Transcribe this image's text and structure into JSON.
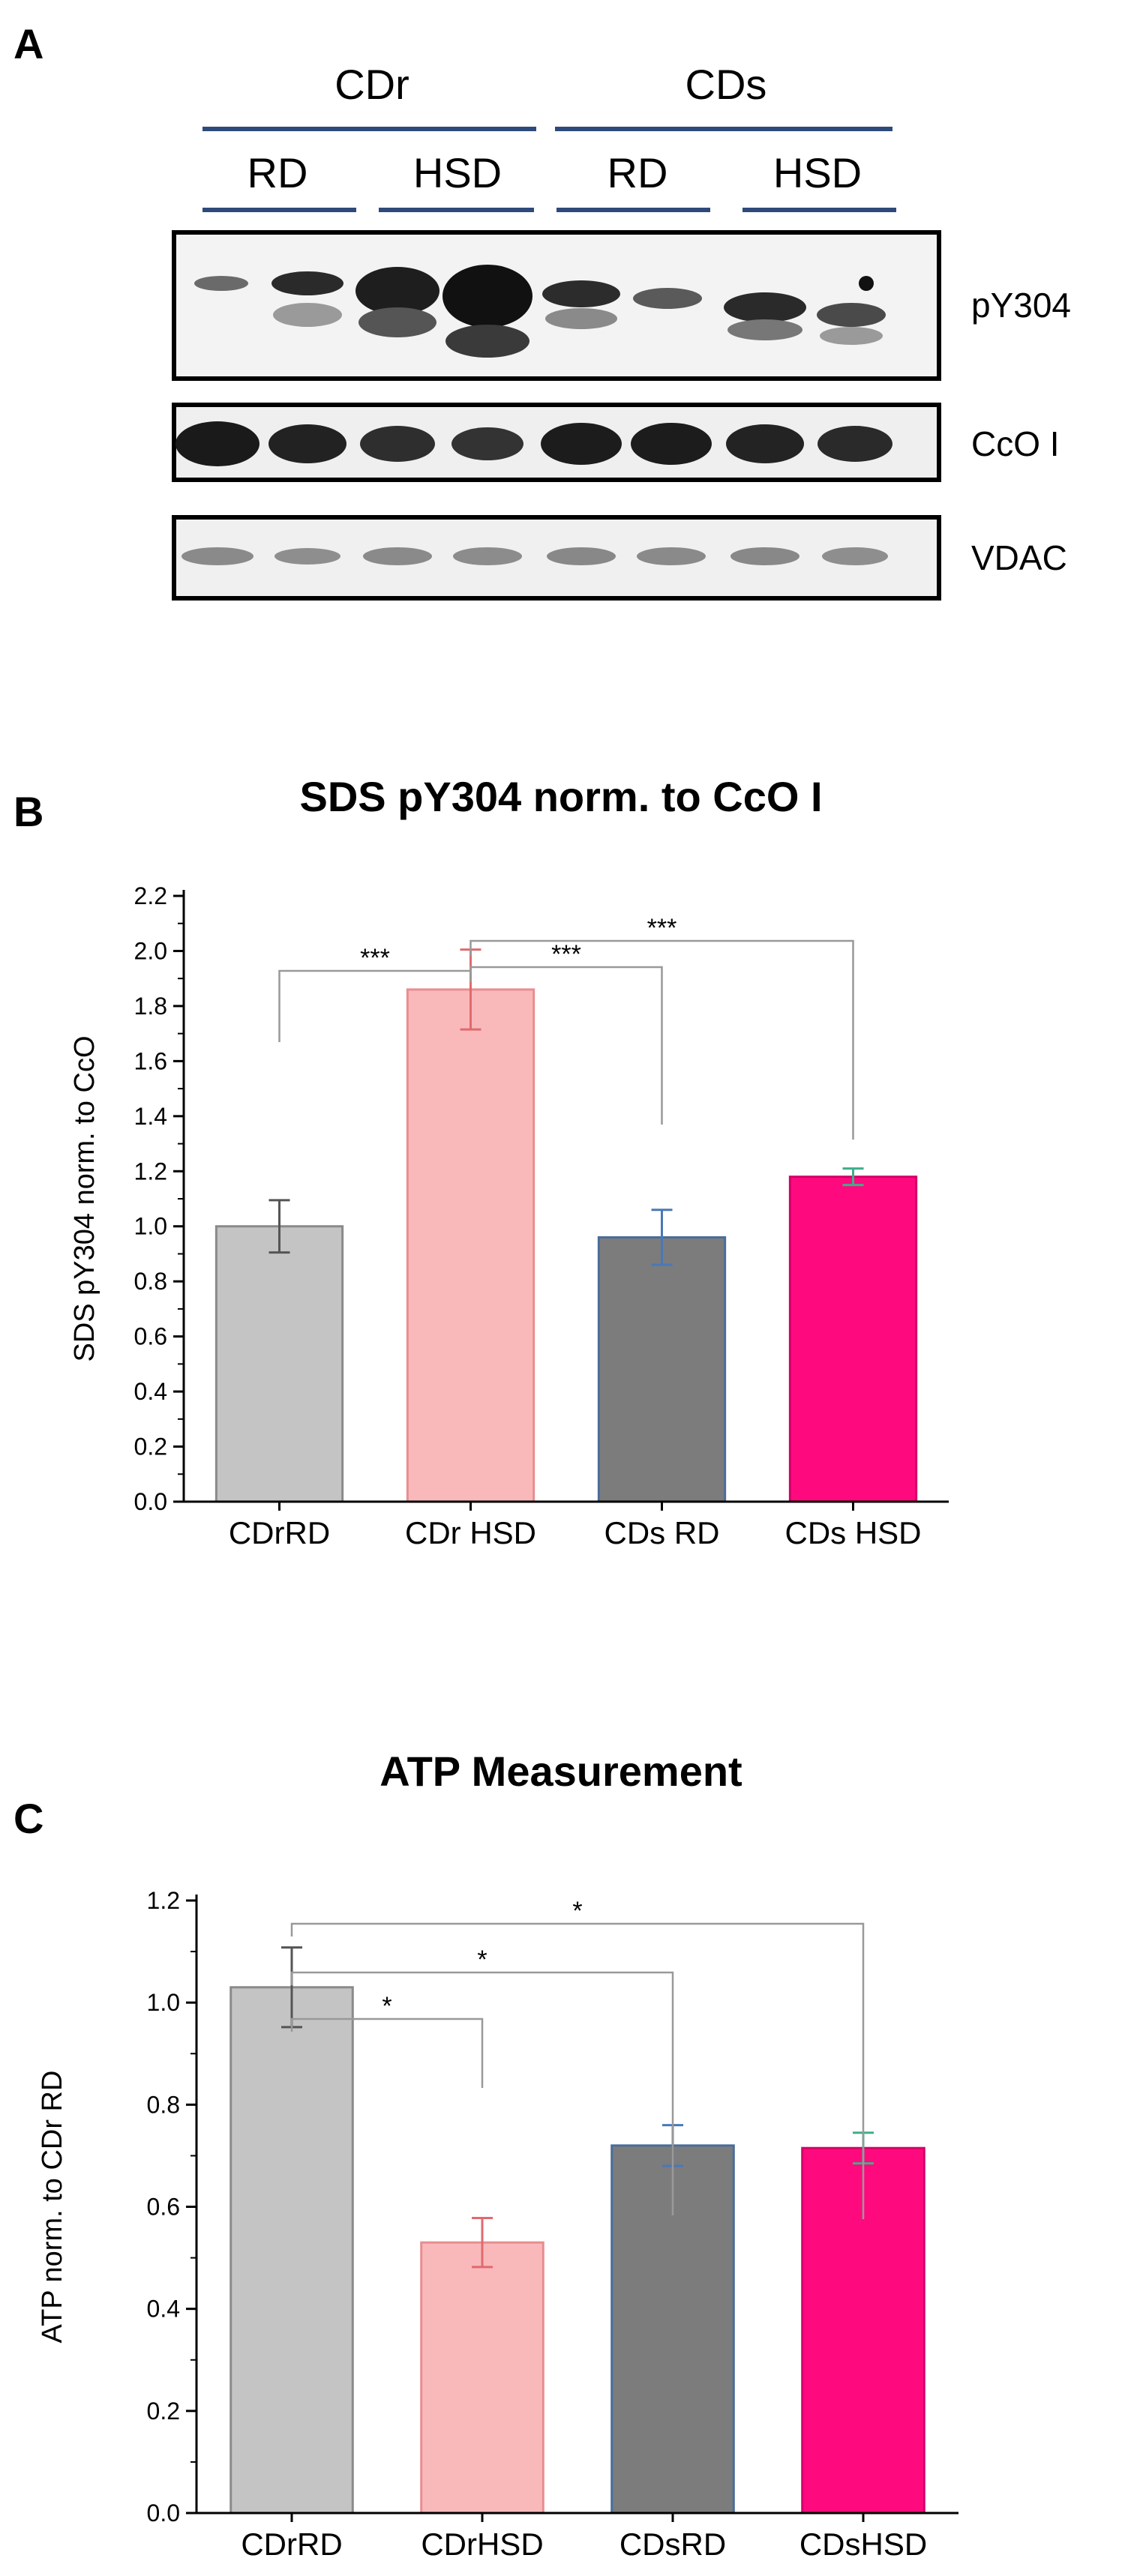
{
  "panel_a": {
    "letter": "A",
    "group_labels": [
      "CDr",
      "CDs"
    ],
    "subgroup_labels": [
      "RD",
      "HSD",
      "RD",
      "HSD"
    ],
    "blot_labels": [
      "pY304",
      "CcO I",
      "VDAC"
    ],
    "header_line_color": "#2e4a7a"
  },
  "panel_b": {
    "letter": "B"
  },
  "panel_c": {
    "letter": "C"
  },
  "chart_data": [
    {
      "type": "bar",
      "title": "SDS pY304 norm. to CcO I",
      "ylabel": "SDS pY304 norm. to CcO",
      "xlabel": "",
      "categories": [
        "CDrRD",
        "CDr HSD",
        "CDs RD",
        "CDs HSD"
      ],
      "values": [
        1.0,
        1.86,
        0.96,
        1.18
      ],
      "errors": [
        0.095,
        0.145,
        0.1,
        0.03
      ],
      "colors": [
        "#c4c4c4",
        "#f9b9bb",
        "#7c7c7c",
        "#ff0a7e"
      ],
      "edge_colors": [
        "#8a8a8a",
        "#e88d90",
        "#4a6d9a",
        "#d4006a"
      ],
      "error_colors": [
        "#555555",
        "#e06a6e",
        "#4a78b8",
        "#3fae8a"
      ],
      "ylim": [
        0,
        2.2
      ],
      "ytick_step": 0.2,
      "ytick_labels": [
        "0.0",
        "0.2",
        "0.4",
        "0.6",
        "0.8",
        "1.0",
        "1.2",
        "1.4",
        "1.6",
        "1.8",
        "2.0",
        "2.2"
      ],
      "significance": [
        {
          "from": 0,
          "to": 1,
          "label": "***"
        },
        {
          "from": 1,
          "to": 2,
          "label": "***"
        },
        {
          "from": 1,
          "to": 3,
          "label": "***"
        }
      ]
    },
    {
      "type": "bar",
      "title": "ATP Measurement",
      "ylabel": "ATP norm. to CDr RD",
      "xlabel": "",
      "categories": [
        "CDrRD",
        "CDrHSD",
        "CDsRD",
        "CDsHSD"
      ],
      "values": [
        1.03,
        0.53,
        0.72,
        0.715
      ],
      "errors": [
        0.078,
        0.048,
        0.04,
        0.03
      ],
      "colors": [
        "#c4c4c4",
        "#f9b9bb",
        "#7c7c7c",
        "#ff0a7e"
      ],
      "edge_colors": [
        "#8a8a8a",
        "#e88d90",
        "#4a6d9a",
        "#d4006a"
      ],
      "error_colors": [
        "#555555",
        "#e06a6e",
        "#4a78b8",
        "#3fae8a"
      ],
      "ylim": [
        0,
        1.2
      ],
      "ytick_step": 0.2,
      "ytick_labels": [
        "0.0",
        "0.2",
        "0.4",
        "0.6",
        "0.8",
        "1.0",
        "1.2"
      ],
      "significance": [
        {
          "from": 0,
          "to": 1,
          "label": "*"
        },
        {
          "from": 0,
          "to": 2,
          "label": "*"
        },
        {
          "from": 0,
          "to": 3,
          "label": "*"
        }
      ]
    }
  ]
}
